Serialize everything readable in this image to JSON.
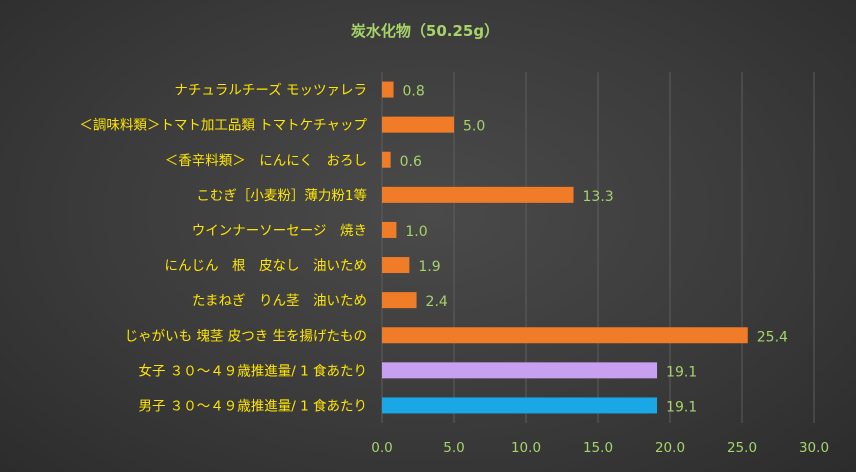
{
  "chart_data": {
    "type": "bar",
    "orientation": "horizontal",
    "title": "炭水化物（50.25g）",
    "categories": [
      "ナチュラルチーズ モッツァレラ",
      "＜調味料類＞トマト加工品類 トマトケチャップ",
      "＜香辛料類＞　にんにく　おろし",
      "こむぎ［小麦粉］薄力粉1等",
      "ウインナーソーセージ　焼き",
      "にんじん　根　皮なし　油いため",
      "たまねぎ　りん茎　油いため",
      "じゃがいも 塊茎 皮つき 生を揚げたもの",
      "女子 ３０～４９歳推進量/ 1 食あたり",
      "男子 ３０～４９歳推進量/ 1 食あたり"
    ],
    "values": [
      0.8,
      5.0,
      0.6,
      13.3,
      1.0,
      1.9,
      2.4,
      25.4,
      19.1,
      19.1
    ],
    "value_labels": [
      "0.8",
      "5.0",
      "0.6",
      "13.3",
      "1.0",
      "1.9",
      "2.4",
      "25.4",
      "19.1",
      "19.1"
    ],
    "bar_colors": [
      "#f07c28",
      "#f07c28",
      "#f07c28",
      "#f07c28",
      "#f07c28",
      "#f07c28",
      "#f07c28",
      "#f07c28",
      "#c9a0f0",
      "#1aa7e6"
    ],
    "xlim": [
      0,
      30
    ],
    "xticks": [
      "0.0",
      "5.0",
      "10.0",
      "15.0",
      "20.0",
      "25.0",
      "30.0"
    ],
    "grid": "vertical",
    "legend": "none"
  }
}
